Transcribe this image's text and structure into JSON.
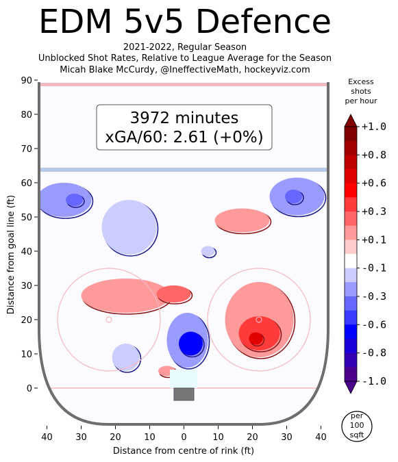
{
  "header": {
    "title": "EDM 5v5 Defence",
    "subtitle_lines": [
      "2021-2022, Regular Season",
      "Unblocked Shot Rates, Relative to League Average for the Season",
      "Micah Blake McCurdy, @IneffectiveMath, hockeyviz.com"
    ]
  },
  "summary": {
    "minutes": "3972 minutes",
    "xga": "xGA/60: 2.61 (+0%)"
  },
  "chart_data": {
    "type": "heatmap",
    "xlabel": "Distance from centre of rink (ft)",
    "ylabel": "Distance from goal line (ft)",
    "xlim": [
      -42,
      42
    ],
    "ylim": [
      -11,
      90
    ],
    "x_ticks": [
      -40,
      -30,
      -20,
      -10,
      0,
      10,
      20,
      30,
      40
    ],
    "x_tick_labels": [
      "40",
      "30",
      "20",
      "10",
      "0",
      "10",
      "20",
      "30",
      "40"
    ],
    "y_ticks": [
      0,
      10,
      20,
      30,
      40,
      50,
      60,
      70,
      80,
      90
    ],
    "y_tick_labels": [
      "0",
      "10",
      "20",
      "30",
      "40",
      "50",
      "60",
      "70",
      "80",
      "90"
    ],
    "colorbar": {
      "title_lines": [
        "Excess",
        "shots",
        "per hour"
      ],
      "tick_labels": [
        "+1.0",
        "+0.8",
        "+0.6",
        "+0.3",
        "+0.1",
        "-0.1",
        "-0.3",
        "-0.6",
        "-0.8",
        "-1.0"
      ],
      "colors": [
        "#7f0000",
        "#a00000",
        "#c00000",
        "#e00000",
        "#ff0000",
        "#ff3a3a",
        "#ff6666",
        "#ff9a9a",
        "#ffcccc",
        "#ffffff",
        "#cccdff",
        "#9a9bff",
        "#6667ff",
        "#3a3bff",
        "#0000ff",
        "#1a00d8",
        "#3300b3",
        "#4d008e"
      ],
      "max_color": "#7f0000",
      "min_color": "#4d008e",
      "unit_lines": [
        "per",
        "100",
        "sqft"
      ]
    },
    "regions": [
      {
        "x": -35,
        "y": 55,
        "rx": 8,
        "ry": 5,
        "value": -0.25
      },
      {
        "x": -32,
        "y": 55,
        "rx": 2.5,
        "ry": 1.8,
        "value": -0.45
      },
      {
        "x": -16,
        "y": 47,
        "rx": 8,
        "ry": 8,
        "value": -0.15
      },
      {
        "x": 7,
        "y": 40,
        "rx": 2,
        "ry": 1.5,
        "value": -0.2
      },
      {
        "x": 17,
        "y": 49,
        "rx": 8,
        "ry": 3.5,
        "value": 0.2
      },
      {
        "x": 33,
        "y": 56,
        "rx": 8,
        "ry": 5.5,
        "value": -0.25
      },
      {
        "x": 32,
        "y": 56,
        "rx": 2.5,
        "ry": 2,
        "value": -0.45
      },
      {
        "x": -17,
        "y": 27,
        "rx": 13,
        "ry": 5,
        "value": 0.15
      },
      {
        "x": -3,
        "y": 27.5,
        "rx": 5,
        "ry": 2.5,
        "value": 0.35
      },
      {
        "x": 1,
        "y": 14,
        "rx": 6,
        "ry": 8,
        "value": -0.3
      },
      {
        "x": 2,
        "y": 13,
        "rx": 3.5,
        "ry": 3.5,
        "value": -0.6
      },
      {
        "x": -17,
        "y": 9,
        "rx": 4,
        "ry": 4,
        "value": -0.15
      },
      {
        "x": -5,
        "y": 5,
        "rx": 2.5,
        "ry": 1.5,
        "value": 0.2
      },
      {
        "x": 22,
        "y": 20,
        "rx": 10,
        "ry": 11,
        "value": 0.15
      },
      {
        "x": 22,
        "y": 16,
        "rx": 6,
        "ry": 5,
        "value": 0.4
      },
      {
        "x": 21,
        "y": 14.5,
        "rx": 2,
        "ry": 1.8,
        "value": 0.7
      }
    ]
  }
}
